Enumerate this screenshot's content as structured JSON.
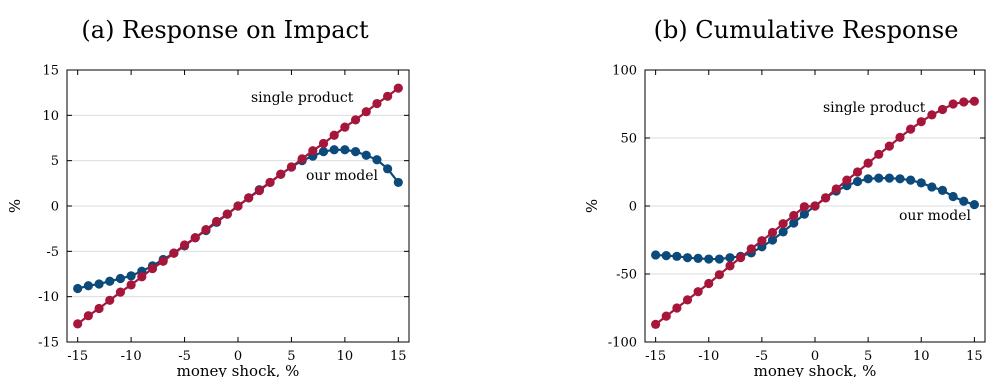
{
  "colors": {
    "ours": "#0b4a7a",
    "single": "#a6163a",
    "grid": "#dcdcdc",
    "frame": "#000000"
  },
  "chart_data": [
    {
      "type": "scatter",
      "title": "(a) Response on Impact",
      "xlabel": "money shock, %",
      "ylabel": "%",
      "xlim": [
        -16,
        16
      ],
      "ylim": [
        -15,
        15
      ],
      "xticks": [
        -15,
        -10,
        -5,
        0,
        5,
        10,
        15
      ],
      "yticks": [
        -15,
        -10,
        -5,
        0,
        5,
        10,
        15
      ],
      "grid": "horizontal",
      "x": [
        -15,
        -14,
        -13,
        -12,
        -11,
        -10,
        -9,
        -8,
        -7,
        -6,
        -5,
        -4,
        -3,
        -2,
        -1,
        0,
        1,
        2,
        3,
        4,
        5,
        6,
        7,
        8,
        9,
        10,
        11,
        12,
        13,
        14,
        15
      ],
      "series": [
        {
          "key": "ours",
          "name": "our model",
          "values": [
            -9.1,
            -8.8,
            -8.6,
            -8.3,
            -8.0,
            -7.7,
            -7.2,
            -6.6,
            -5.9,
            -5.2,
            -4.4,
            -3.5,
            -2.7,
            -1.8,
            -0.9,
            0,
            0.9,
            1.8,
            2.6,
            3.5,
            4.3,
            5.0,
            5.5,
            6.0,
            6.2,
            6.2,
            6.0,
            5.6,
            5.1,
            4.1,
            2.6
          ]
        },
        {
          "key": "single",
          "name": "single product",
          "values": [
            -13.0,
            -12.1,
            -11.3,
            -10.4,
            -9.5,
            -8.7,
            -7.8,
            -6.9,
            -6.1,
            -5.2,
            -4.3,
            -3.5,
            -2.6,
            -1.7,
            -0.9,
            0,
            0.9,
            1.7,
            2.6,
            3.5,
            4.3,
            5.2,
            6.1,
            6.9,
            7.8,
            8.7,
            9.5,
            10.4,
            11.3,
            12.1,
            13.0
          ]
        }
      ],
      "annotations": [
        {
          "series": "single",
          "text": "single product"
        },
        {
          "series": "ours",
          "text": "our model"
        }
      ]
    },
    {
      "type": "scatter",
      "title": "(b) Cumulative Response",
      "xlabel": "money shock, %",
      "ylabel": "%",
      "xlim": [
        -16,
        16
      ],
      "ylim": [
        -100,
        100
      ],
      "xticks": [
        -15,
        -10,
        -5,
        0,
        5,
        10,
        15
      ],
      "yticks": [
        -100,
        -50,
        0,
        50,
        100
      ],
      "grid": "horizontal",
      "x": [
        -15,
        -14,
        -13,
        -12,
        -11,
        -10,
        -9,
        -8,
        -7,
        -6,
        -5,
        -4,
        -3,
        -2,
        -1,
        0,
        1,
        2,
        3,
        4,
        5,
        6,
        7,
        8,
        9,
        10,
        11,
        12,
        13,
        14,
        15
      ],
      "series": [
        {
          "key": "ours",
          "name": "our model",
          "values": [
            -36,
            -36.5,
            -37,
            -38,
            -38.5,
            -39,
            -39,
            -38,
            -37,
            -34.5,
            -30,
            -25,
            -19,
            -12.5,
            -6,
            0,
            6,
            11,
            15,
            18,
            20,
            20.5,
            20.5,
            20,
            19,
            17,
            14,
            11.5,
            7,
            3.5,
            1
          ]
        },
        {
          "key": "single",
          "name": "single product",
          "values": [
            -87,
            -81,
            -75,
            -69,
            -63,
            -57,
            -50.5,
            -44,
            -38,
            -31.5,
            -25.5,
            -19.5,
            -13,
            -7,
            -0.5,
            0,
            6,
            12.5,
            19,
            25,
            31.5,
            38,
            44,
            50.5,
            56.5,
            62,
            67,
            71,
            75,
            76.5,
            77
          ]
        }
      ],
      "annotations": [
        {
          "series": "single",
          "text": "single product"
        },
        {
          "series": "ours",
          "text": "our model"
        }
      ]
    }
  ]
}
